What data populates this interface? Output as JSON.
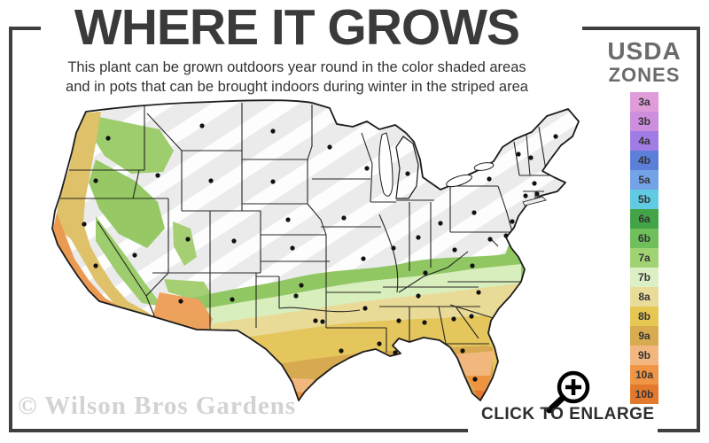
{
  "header": {
    "title": "WHERE IT GROWS",
    "subtitle_line1": "This plant can be grown outdoors year round in the color shaded areas",
    "subtitle_line2": "and in pots that can be brought indoors during winter in the striped area"
  },
  "legend": {
    "title_line1": "USDA",
    "title_line2": "ZONES",
    "zones": [
      {
        "label": "3a",
        "color": "#df9cd9"
      },
      {
        "label": "3b",
        "color": "#cd8ede"
      },
      {
        "label": "4a",
        "color": "#a07ce4"
      },
      {
        "label": "4b",
        "color": "#5c7fd9"
      },
      {
        "label": "5a",
        "color": "#73a3e6"
      },
      {
        "label": "5b",
        "color": "#60cbe3"
      },
      {
        "label": "6a",
        "color": "#43a447"
      },
      {
        "label": "6b",
        "color": "#6fc05c"
      },
      {
        "label": "7a",
        "color": "#a2d372"
      },
      {
        "label": "7b",
        "color": "#ddefc5"
      },
      {
        "label": "8a",
        "color": "#e9dc9b"
      },
      {
        "label": "8b",
        "color": "#e6c751"
      },
      {
        "label": "9a",
        "color": "#d8ab51"
      },
      {
        "label": "9b",
        "color": "#f2b77e"
      },
      {
        "label": "10a",
        "color": "#ef9545"
      },
      {
        "label": "10b",
        "color": "#e2792c"
      }
    ]
  },
  "footer": {
    "watermark": "© Wilson Bros Gardens",
    "enlarge_label": "CLICK TO ENLARGE"
  },
  "colors": {
    "frame": "#3f3f3f",
    "map_base_gray": "#ebebeb",
    "map_outline": "#1c1c1c",
    "title_text": "#3a3a3a",
    "legend_title": "#6b6b6b",
    "watermark": "#d3d3d3"
  }
}
